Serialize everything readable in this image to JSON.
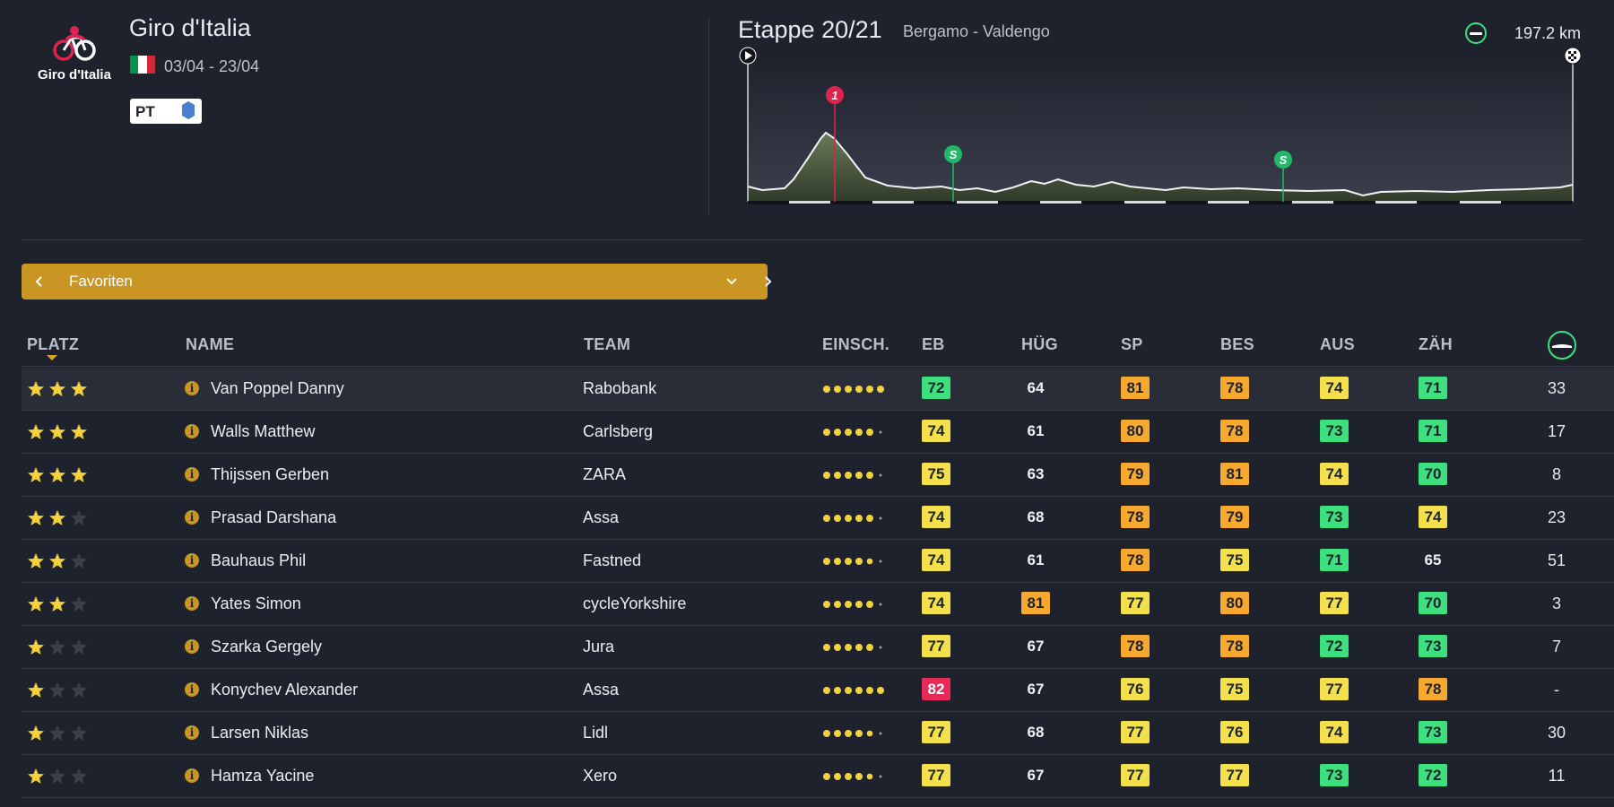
{
  "race": {
    "logo_text": "Giro d'Italia",
    "name": "Giro d'Italia",
    "dates": "03/04 - 23/04",
    "badge": "PT",
    "flag_colors": [
      "#009246",
      "#ffffff",
      "#ce2b37"
    ]
  },
  "stage": {
    "title": "Etappe 20/21",
    "route": "Bergamo - Valdengo",
    "distance": "197.2 km",
    "markers": [
      {
        "label": "1",
        "color": "#e0224f"
      },
      {
        "label": "S",
        "color": "#22b86a"
      },
      {
        "label": "S",
        "color": "#22b86a"
      }
    ]
  },
  "filter": {
    "label": "Favoriten"
  },
  "columns": {
    "platz": "PLATZ",
    "name": "NAME",
    "team": "TEAM",
    "einsch": "EINSCH.",
    "eb": "EB",
    "hug": "HÜG",
    "sp": "SP",
    "bes": "BES",
    "aus": "AUS",
    "zah": "ZÄH"
  },
  "colors": {
    "accent": "#c99624",
    "yellow": "#f4e04c",
    "orange": "#f6a82f",
    "green": "#3ee07e",
    "red": "#e82a59"
  },
  "riders": [
    {
      "stars": 3,
      "name": "Van Poppel Danny",
      "team": "Rabobank",
      "form": 6,
      "vals": [
        {
          "v": "72",
          "c": "green"
        },
        {
          "v": "64",
          "c": "plain"
        },
        {
          "v": "81",
          "c": "orange"
        },
        {
          "v": "78",
          "c": "orange"
        },
        {
          "v": "74",
          "c": "yellow"
        },
        {
          "v": "71",
          "c": "green"
        }
      ],
      "last": "33"
    },
    {
      "stars": 3,
      "name": "Walls Matthew",
      "team": "Carlsberg",
      "form": 5,
      "vals": [
        {
          "v": "74",
          "c": "yellow"
        },
        {
          "v": "61",
          "c": "plain"
        },
        {
          "v": "80",
          "c": "orange"
        },
        {
          "v": "78",
          "c": "orange"
        },
        {
          "v": "73",
          "c": "green"
        },
        {
          "v": "71",
          "c": "green"
        }
      ],
      "last": "17"
    },
    {
      "stars": 3,
      "name": "Thijssen Gerben",
      "team": "ZARA",
      "form": 5,
      "vals": [
        {
          "v": "75",
          "c": "yellow"
        },
        {
          "v": "63",
          "c": "plain"
        },
        {
          "v": "79",
          "c": "orange"
        },
        {
          "v": "81",
          "c": "orange"
        },
        {
          "v": "74",
          "c": "yellow"
        },
        {
          "v": "70",
          "c": "green"
        }
      ],
      "last": "8"
    },
    {
      "stars": 2,
      "name": "Prasad Darshana",
      "team": "Assa",
      "form": 5,
      "vals": [
        {
          "v": "74",
          "c": "yellow"
        },
        {
          "v": "68",
          "c": "plain"
        },
        {
          "v": "78",
          "c": "orange"
        },
        {
          "v": "79",
          "c": "orange"
        },
        {
          "v": "73",
          "c": "green"
        },
        {
          "v": "74",
          "c": "yellow"
        }
      ],
      "last": "23"
    },
    {
      "stars": 2,
      "name": "Bauhaus Phil",
      "team": "Fastned",
      "form": 4.5,
      "vals": [
        {
          "v": "74",
          "c": "yellow"
        },
        {
          "v": "61",
          "c": "plain"
        },
        {
          "v": "78",
          "c": "orange"
        },
        {
          "v": "75",
          "c": "yellow"
        },
        {
          "v": "71",
          "c": "green"
        },
        {
          "v": "65",
          "c": "plain"
        }
      ],
      "last": "51"
    },
    {
      "stars": 2,
      "name": "Yates Simon",
      "team": "cycleYorkshire",
      "form": 5,
      "vals": [
        {
          "v": "74",
          "c": "yellow"
        },
        {
          "v": "81",
          "c": "orange"
        },
        {
          "v": "77",
          "c": "yellow"
        },
        {
          "v": "80",
          "c": "orange"
        },
        {
          "v": "77",
          "c": "yellow"
        },
        {
          "v": "70",
          "c": "green"
        }
      ],
      "last": "3"
    },
    {
      "stars": 1,
      "name": "Szarka Gergely",
      "team": "Jura",
      "form": 5,
      "vals": [
        {
          "v": "77",
          "c": "yellow"
        },
        {
          "v": "67",
          "c": "plain"
        },
        {
          "v": "78",
          "c": "orange"
        },
        {
          "v": "78",
          "c": "orange"
        },
        {
          "v": "72",
          "c": "green"
        },
        {
          "v": "73",
          "c": "green"
        }
      ],
      "last": "7"
    },
    {
      "stars": 1,
      "name": "Konychev Alexander",
      "team": "Assa",
      "form": 6,
      "vals": [
        {
          "v": "82",
          "c": "red"
        },
        {
          "v": "67",
          "c": "plain"
        },
        {
          "v": "76",
          "c": "yellow"
        },
        {
          "v": "75",
          "c": "yellow"
        },
        {
          "v": "77",
          "c": "yellow"
        },
        {
          "v": "78",
          "c": "orange"
        }
      ],
      "last": "-"
    },
    {
      "stars": 1,
      "name": "Larsen Niklas",
      "team": "Lidl",
      "form": 4.5,
      "vals": [
        {
          "v": "77",
          "c": "yellow"
        },
        {
          "v": "68",
          "c": "plain"
        },
        {
          "v": "77",
          "c": "yellow"
        },
        {
          "v": "76",
          "c": "yellow"
        },
        {
          "v": "74",
          "c": "yellow"
        },
        {
          "v": "73",
          "c": "green"
        }
      ],
      "last": "30"
    },
    {
      "stars": 1,
      "name": "Hamza Yacine",
      "team": "Xero",
      "form": 4.5,
      "vals": [
        {
          "v": "77",
          "c": "yellow"
        },
        {
          "v": "67",
          "c": "plain"
        },
        {
          "v": "77",
          "c": "yellow"
        },
        {
          "v": "77",
          "c": "yellow"
        },
        {
          "v": "73",
          "c": "green"
        },
        {
          "v": "72",
          "c": "green"
        }
      ],
      "last": "11"
    }
  ]
}
